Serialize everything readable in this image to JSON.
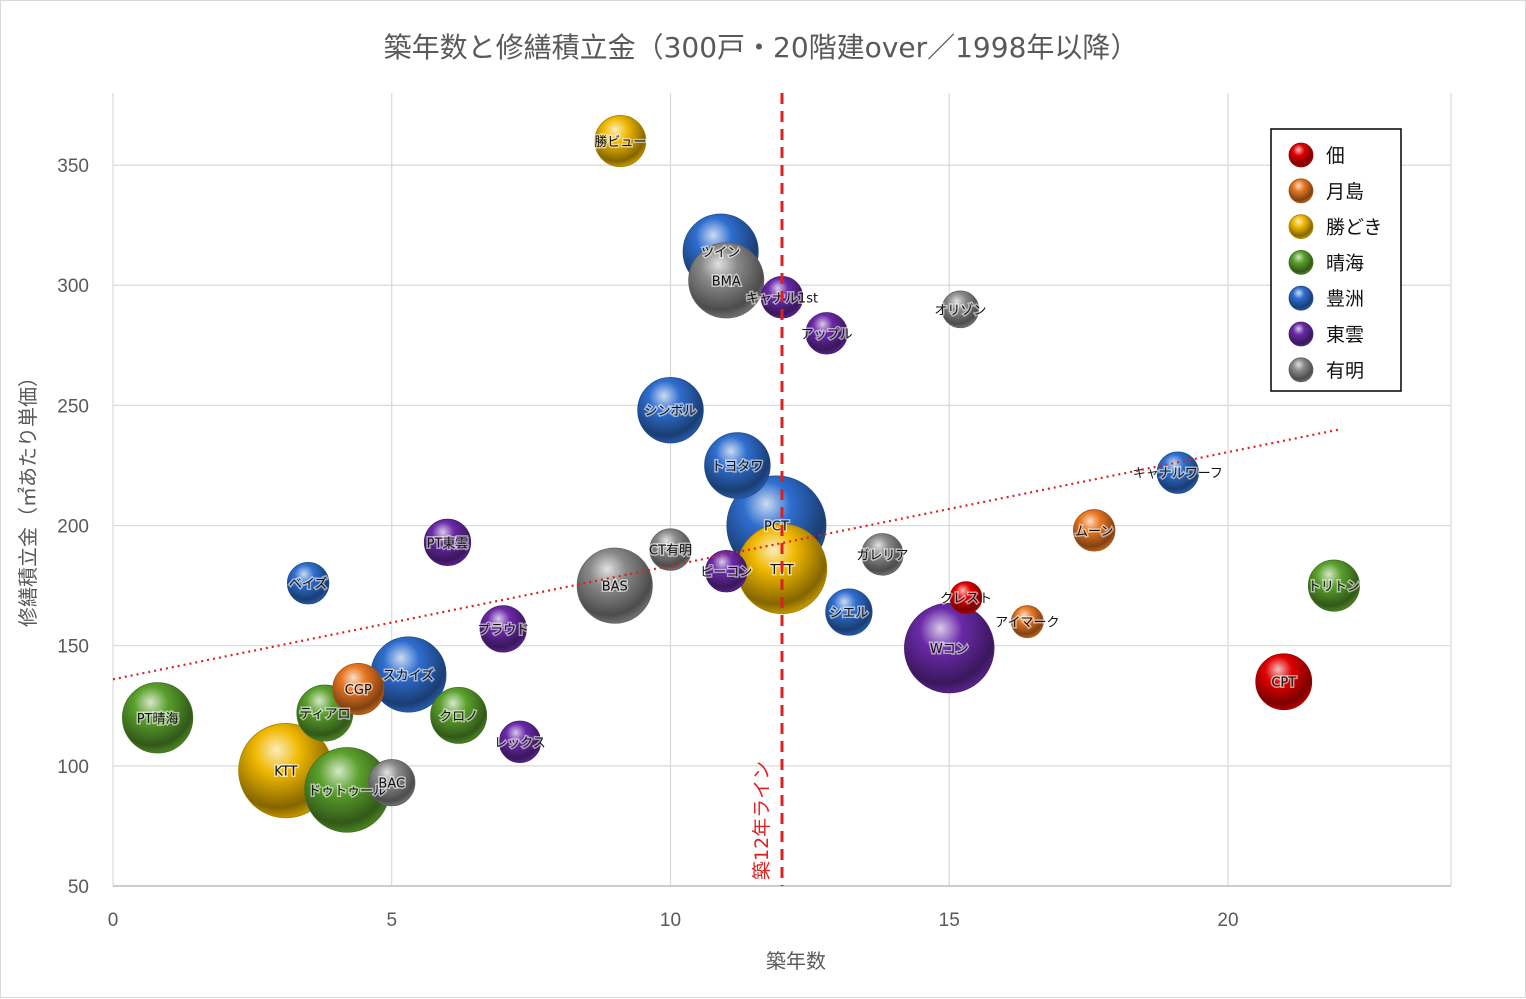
{
  "chart_data": {
    "type": "scatter",
    "title": "築年数と修繕積立金（300戸・20階建over／1998年以降）",
    "xlabel": "築年数",
    "ylabel": "修繕積立金（㎡あたり単価）",
    "xlim": [
      0,
      24
    ],
    "ylim": [
      50,
      380
    ],
    "xticks": [
      0,
      5,
      10,
      15,
      20
    ],
    "yticks": [
      50,
      100,
      150,
      200,
      250,
      300,
      350
    ],
    "grid": true,
    "legend_position": "top-right",
    "series": [
      {
        "name": "佃",
        "color": "#e00000",
        "points": [
          {
            "label": "クレスト",
            "x": 15.3,
            "y": 170,
            "size": 5
          },
          {
            "label": "CPT",
            "x": 21.0,
            "y": 135,
            "size": 10
          }
        ]
      },
      {
        "name": "月島",
        "color": "#e87722",
        "points": [
          {
            "label": "CGP",
            "x": 4.4,
            "y": 132,
            "size": 9
          },
          {
            "label": "アイマーク",
            "x": 16.4,
            "y": 160,
            "size": 5
          },
          {
            "label": "ムーン",
            "x": 17.6,
            "y": 198,
            "size": 7
          }
        ]
      },
      {
        "name": "勝どき",
        "color": "#f0b800",
        "points": [
          {
            "label": "勝ビュー",
            "x": 9.1,
            "y": 360,
            "size": 9
          },
          {
            "label": "TTT",
            "x": 12.0,
            "y": 182,
            "size": 17
          },
          {
            "label": "KTT",
            "x": 3.1,
            "y": 98,
            "size": 18
          }
        ]
      },
      {
        "name": "晴海",
        "color": "#5aa02c",
        "points": [
          {
            "label": "PT晴海",
            "x": 0.8,
            "y": 120,
            "size": 13
          },
          {
            "label": "ティアロ",
            "x": 3.8,
            "y": 122,
            "size": 10
          },
          {
            "label": "ドゥトゥール",
            "x": 4.2,
            "y": 90,
            "size": 16
          },
          {
            "label": "クロノ",
            "x": 6.2,
            "y": 121,
            "size": 10
          },
          {
            "label": "トリトン",
            "x": 21.9,
            "y": 175,
            "size": 9
          }
        ]
      },
      {
        "name": "豊洲",
        "color": "#2f6ecf",
        "points": [
          {
            "label": "ツイン",
            "x": 10.9,
            "y": 314,
            "size": 14
          },
          {
            "label": "シンボル",
            "x": 10.0,
            "y": 248,
            "size": 12
          },
          {
            "label": "トヨタワ",
            "x": 11.2,
            "y": 225,
            "size": 12
          },
          {
            "label": "PCT",
            "x": 11.9,
            "y": 200,
            "size": 19
          },
          {
            "label": "ベイズ",
            "x": 3.5,
            "y": 176,
            "size": 7
          },
          {
            "label": "スカイズ",
            "x": 5.3,
            "y": 138,
            "size": 14
          },
          {
            "label": "シエル",
            "x": 13.2,
            "y": 164,
            "size": 8
          },
          {
            "label": "キャナルワーフ",
            "x": 19.1,
            "y": 222,
            "size": 7
          }
        ]
      },
      {
        "name": "東雲",
        "color": "#6a2aa8",
        "points": [
          {
            "label": "キャナル1st",
            "x": 12.0,
            "y": 295,
            "size": 7
          },
          {
            "label": "アップル",
            "x": 12.8,
            "y": 280,
            "size": 7
          },
          {
            "label": "PT東雲",
            "x": 6.0,
            "y": 193,
            "size": 8
          },
          {
            "label": "ピーコン",
            "x": 11.0,
            "y": 181,
            "size": 7
          },
          {
            "label": "プラウド",
            "x": 7.0,
            "y": 157,
            "size": 8
          },
          {
            "label": "Wコン",
            "x": 15.0,
            "y": 149,
            "size": 17
          },
          {
            "label": "レックス",
            "x": 7.3,
            "y": 110,
            "size": 7
          }
        ]
      },
      {
        "name": "有明",
        "color": "#8a8a8a",
        "points": [
          {
            "label": "BMA",
            "x": 11.0,
            "y": 302,
            "size": 14
          },
          {
            "label": "オリゾン",
            "x": 15.2,
            "y": 290,
            "size": 6
          },
          {
            "label": "CT有明",
            "x": 10.0,
            "y": 190,
            "size": 7
          },
          {
            "label": "ガレリア",
            "x": 13.8,
            "y": 188,
            "size": 7
          },
          {
            "label": "BAS",
            "x": 9.0,
            "y": 175,
            "size": 14
          },
          {
            "label": "BAC",
            "x": 5.0,
            "y": 93,
            "size": 8
          }
        ]
      }
    ],
    "trendline": {
      "x": [
        0,
        22
      ],
      "y": [
        136,
        240
      ]
    },
    "reference_line": {
      "x": 12.0,
      "label": "築12年ライン"
    }
  }
}
